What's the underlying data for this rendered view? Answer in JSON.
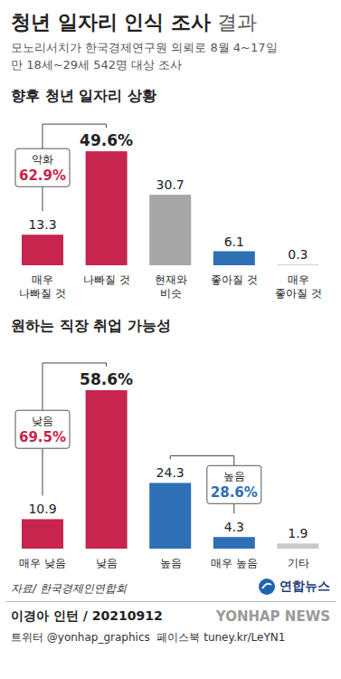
{
  "title": "청년 일자리 인식 조사 결과",
  "subtitle": [
    "모노리서치가 한국경제연구원 의뢰로 8월 4~17일",
    "만 18세~29세 542명 대상 조사"
  ],
  "chart_data": [
    {
      "type": "bar",
      "title": "향후 청년 일자리 상황",
      "categories": [
        "매우 나빠질 것",
        "나빠질 것",
        "현재와 비슷",
        "좋아질 것",
        "매우 좋아질 것"
      ],
      "values": [
        13.3,
        49.6,
        30.7,
        6.1,
        0.3
      ],
      "value_labels": [
        "13.3",
        "49.6%",
        "30.7",
        "6.1",
        "0.3"
      ],
      "colors": [
        "#c7254e",
        "#c7254e",
        "#a6a6a6",
        "#2f6fb5",
        "#c8c8c8"
      ],
      "ylim": [
        0,
        65
      ],
      "grid": false,
      "data_labels": true,
      "tick_labels": "x",
      "annotations": [
        {
          "text": "악화",
          "value": 62.9,
          "value_label": "62.9%",
          "categories": [
            "매우 나빠질 것",
            "나빠질 것"
          ]
        }
      ]
    },
    {
      "type": "bar",
      "title": "원하는 직장 취업 가능성",
      "categories": [
        "매우 낮음",
        "낮음",
        "높음",
        "매우 높음",
        "기타"
      ],
      "values": [
        10.9,
        58.6,
        24.3,
        4.3,
        1.9
      ],
      "value_labels": [
        "10.9",
        "58.6%",
        "24.3",
        "4.3",
        "1.9"
      ],
      "colors": [
        "#c7254e",
        "#c7254e",
        "#2f6fb5",
        "#2f6fb5",
        "#c8c8c8"
      ],
      "ylim": [
        0,
        75
      ],
      "grid": false,
      "data_labels": true,
      "tick_labels": "x",
      "annotations": [
        {
          "text": "낮음",
          "value": 69.5,
          "value_label": "69.5%",
          "categories": [
            "매우 낮음",
            "낮음"
          ]
        },
        {
          "text": "높음",
          "value": 28.6,
          "value_label": "28.6%",
          "categories": [
            "높음",
            "매우 높음"
          ]
        }
      ]
    }
  ],
  "source": "자료/ 한국경제인연합회",
  "logo": "연합뉴스",
  "credit": "이경아 인턴 / 20210912",
  "social": "트위터 @yonhap_graphics  페이스북 tuney.kr/LeYN1",
  "watermark": "YONHAP NEWS"
}
